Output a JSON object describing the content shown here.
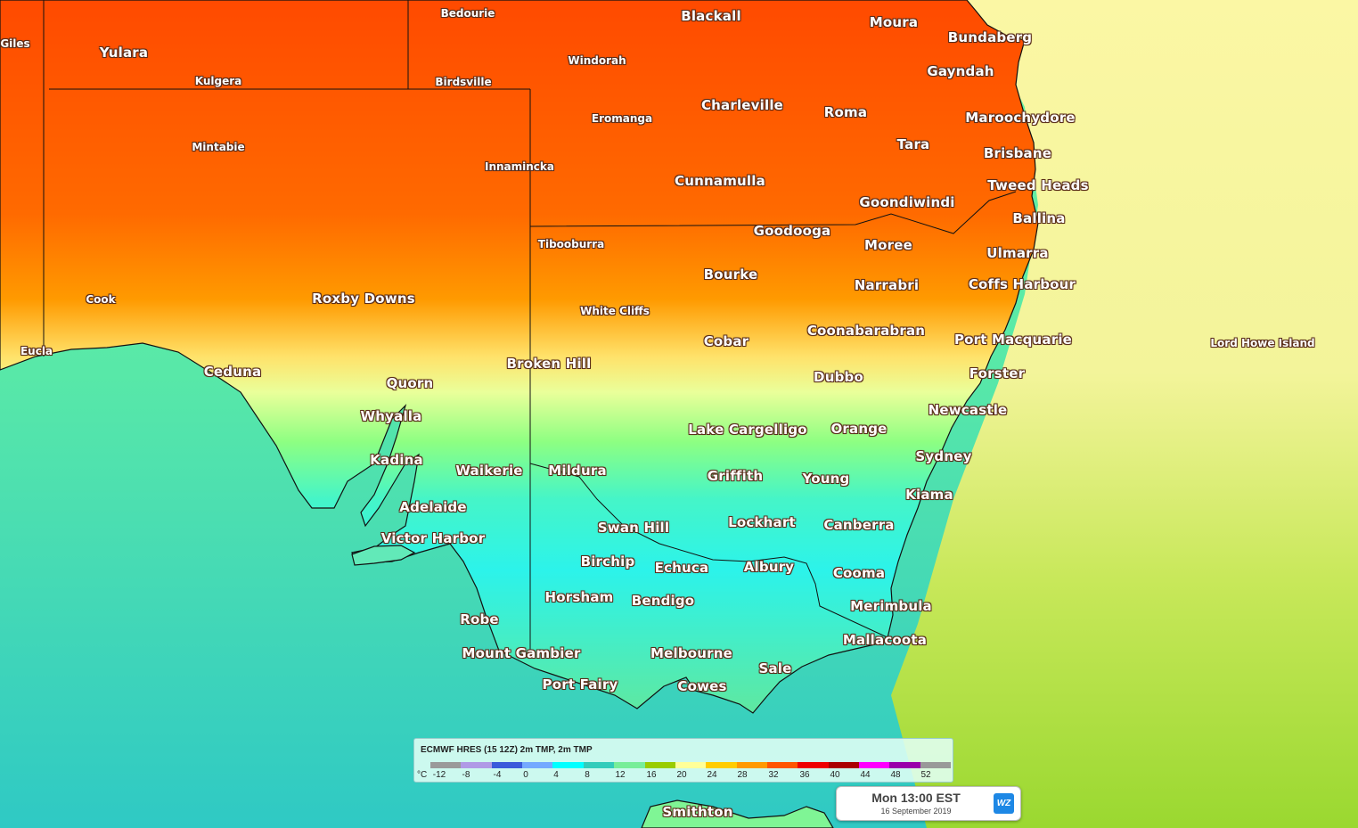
{
  "places": [
    {
      "name": "Giles",
      "size": "sm"
    },
    {
      "name": "Yulara",
      "size": "lg"
    },
    {
      "name": "Kulgera",
      "size": "sm"
    },
    {
      "name": "Bedourie",
      "size": "sm"
    },
    {
      "name": "Birdsville",
      "size": "sm"
    },
    {
      "name": "Windorah",
      "size": "sm"
    },
    {
      "name": "Blackall",
      "size": "lg"
    },
    {
      "name": "Moura",
      "size": "lg"
    },
    {
      "name": "Bundaberg",
      "size": "lg"
    },
    {
      "name": "Gayndah",
      "size": "lg"
    },
    {
      "name": "Eromanga",
      "size": "sm"
    },
    {
      "name": "Charleville",
      "size": "lg"
    },
    {
      "name": "Roma",
      "size": "lg"
    },
    {
      "name": "Maroochydore",
      "size": "lg"
    },
    {
      "name": "Tara",
      "size": "lg"
    },
    {
      "name": "Brisbane",
      "size": "lg"
    },
    {
      "name": "Mintabie",
      "size": "sm"
    },
    {
      "name": "Innamincka",
      "size": "sm"
    },
    {
      "name": "Cunnamulla",
      "size": "lg"
    },
    {
      "name": "Tweed Heads",
      "size": "lg"
    },
    {
      "name": "Goondiwindi",
      "size": "lg"
    },
    {
      "name": "Ballina",
      "size": "lg"
    },
    {
      "name": "Goodooga",
      "size": "lg"
    },
    {
      "name": "Tibooburra",
      "size": "sm"
    },
    {
      "name": "Moree",
      "size": "lg"
    },
    {
      "name": "Ulmarra",
      "size": "lg"
    },
    {
      "name": "Bourke",
      "size": "lg"
    },
    {
      "name": "Coffs Harbour",
      "size": "lg"
    },
    {
      "name": "Narrabri",
      "size": "lg"
    },
    {
      "name": "Cook",
      "size": "sm"
    },
    {
      "name": "Roxby Downs",
      "size": "lg"
    },
    {
      "name": "White Cliffs",
      "size": "sm"
    },
    {
      "name": "Coonabarabran",
      "size": "lg"
    },
    {
      "name": "Port Macquarie",
      "size": "lg"
    },
    {
      "name": "Cobar",
      "size": "lg"
    },
    {
      "name": "Lord Howe Island",
      "size": "sm"
    },
    {
      "name": "Eucla",
      "size": "sm"
    },
    {
      "name": "Broken Hill",
      "size": "lg"
    },
    {
      "name": "Ceduna",
      "size": "lg"
    },
    {
      "name": "Forster",
      "size": "lg"
    },
    {
      "name": "Dubbo",
      "size": "lg"
    },
    {
      "name": "Quorn",
      "size": "lg"
    },
    {
      "name": "Newcastle",
      "size": "lg"
    },
    {
      "name": "Whyalla",
      "size": "lg"
    },
    {
      "name": "Lake Cargelligo",
      "size": "lg"
    },
    {
      "name": "Orange",
      "size": "lg"
    },
    {
      "name": "Sydney",
      "size": "lg"
    },
    {
      "name": "Kadina",
      "size": "lg"
    },
    {
      "name": "Waikerie",
      "size": "lg"
    },
    {
      "name": "Mildura",
      "size": "lg"
    },
    {
      "name": "Griffith",
      "size": "lg"
    },
    {
      "name": "Young",
      "size": "lg"
    },
    {
      "name": "Kiama",
      "size": "lg"
    },
    {
      "name": "Adelaide",
      "size": "lg"
    },
    {
      "name": "Lockhart",
      "size": "lg"
    },
    {
      "name": "Canberra",
      "size": "lg"
    },
    {
      "name": "Swan Hill",
      "size": "lg"
    },
    {
      "name": "Victor Harbor",
      "size": "lg"
    },
    {
      "name": "Birchip",
      "size": "lg"
    },
    {
      "name": "Echuca",
      "size": "lg"
    },
    {
      "name": "Albury",
      "size": "lg"
    },
    {
      "name": "Cooma",
      "size": "lg"
    },
    {
      "name": "Horsham",
      "size": "lg"
    },
    {
      "name": "Bendigo",
      "size": "lg"
    },
    {
      "name": "Merimbula",
      "size": "lg"
    },
    {
      "name": "Robe",
      "size": "lg"
    },
    {
      "name": "Mallacoota",
      "size": "lg"
    },
    {
      "name": "Mount Gambier",
      "size": "lg"
    },
    {
      "name": "Melbourne",
      "size": "lg"
    },
    {
      "name": "Sale",
      "size": "lg"
    },
    {
      "name": "Port Fairy",
      "size": "lg"
    },
    {
      "name": "Cowes",
      "size": "lg"
    },
    {
      "name": "Smithton",
      "size": "lg"
    }
  ],
  "legend": {
    "title": "ECMWF HRES (15 12Z) 2m TMP, 2m TMP",
    "unit": "°C",
    "ticks": [
      "-12",
      "-8",
      "-4",
      "0",
      "4",
      "8",
      "12",
      "16",
      "20",
      "24",
      "28",
      "32",
      "36",
      "40",
      "44",
      "48",
      "52"
    ],
    "colors": [
      "#9a9a9a",
      "#b09ae6",
      "#3b5bdb",
      "#74a9ff",
      "#00ffff",
      "#33ccbb",
      "#77ee99",
      "#99cc00",
      "#ffff99",
      "#ffcc00",
      "#ff9900",
      "#ff5500",
      "#ee0000",
      "#aa0000",
      "#ff00ff",
      "#9900aa",
      "#999999"
    ]
  },
  "timestamp": {
    "time": "Mon 13:00 EST",
    "date": "16 September 2019",
    "logo": "WZ"
  },
  "colors": {
    "ocean_south": "#40d6bd",
    "ocean_east": "#f6f5a0",
    "hot": "#ff3d00",
    "warm": "#ff9a00",
    "cool": "#1ff2ee",
    "mild": "#7fff8a"
  }
}
